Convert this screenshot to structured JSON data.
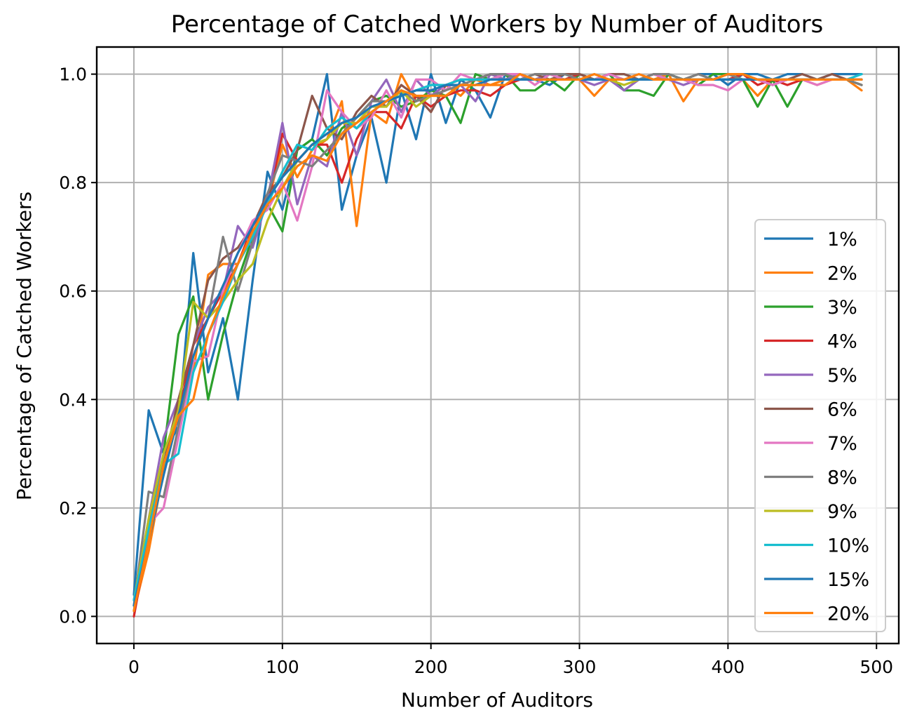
{
  "chart_data": {
    "type": "line",
    "title": "Percentage of Catched Workers by Number of Auditors",
    "xlabel": "Number of Auditors",
    "ylabel": "Percentage of Catched Workers",
    "xlim": [
      -25,
      515
    ],
    "ylim": [
      -0.05,
      1.05
    ],
    "xticks": [
      0,
      100,
      200,
      300,
      400,
      500
    ],
    "yticks": [
      0.0,
      0.2,
      0.4,
      0.6,
      0.8,
      1.0
    ],
    "xtick_labels": [
      "0",
      "100",
      "200",
      "300",
      "400",
      "500"
    ],
    "ytick_labels": [
      "0.0",
      "0.2",
      "0.4",
      "0.6",
      "0.8",
      "1.0"
    ],
    "grid": true,
    "legend_position": "center-right",
    "x": [
      0,
      10,
      20,
      30,
      40,
      50,
      60,
      70,
      80,
      90,
      100,
      110,
      120,
      130,
      140,
      150,
      160,
      170,
      180,
      190,
      200,
      210,
      220,
      230,
      240,
      250,
      260,
      270,
      280,
      290,
      300,
      310,
      320,
      330,
      340,
      350,
      360,
      370,
      380,
      390,
      400,
      410,
      420,
      430,
      440,
      450,
      460,
      470,
      480,
      490
    ],
    "series": [
      {
        "name": "1%",
        "color": "#1f77b4",
        "values": [
          0.04,
          0.38,
          0.3,
          0.35,
          0.67,
          0.45,
          0.55,
          0.4,
          0.62,
          0.82,
          0.75,
          0.86,
          0.88,
          1.0,
          0.75,
          0.85,
          0.92,
          0.8,
          0.97,
          0.88,
          1.0,
          0.91,
          0.99,
          0.97,
          0.92,
          1.0,
          1.0,
          0.99,
          0.98,
          1.0,
          1.0,
          0.99,
          1.0,
          1.0,
          0.99,
          1.0,
          1.0,
          0.99,
          1.0,
          1.0,
          0.98,
          1.0,
          1.0,
          0.99,
          1.0,
          1.0,
          0.99,
          1.0,
          1.0,
          1.0
        ]
      },
      {
        "name": "2%",
        "color": "#ff7f0e",
        "values": [
          0.01,
          0.12,
          0.27,
          0.39,
          0.45,
          0.63,
          0.65,
          0.65,
          0.7,
          0.76,
          0.87,
          0.81,
          0.86,
          0.88,
          0.95,
          0.72,
          0.93,
          0.91,
          1.0,
          0.95,
          0.96,
          0.98,
          0.96,
          0.99,
          0.98,
          0.99,
          1.0,
          0.99,
          1.0,
          0.99,
          0.99,
          0.96,
          0.99,
          0.99,
          0.99,
          0.99,
          1.0,
          0.95,
          0.99,
          0.99,
          0.99,
          0.99,
          0.96,
          0.99,
          0.99,
          0.99,
          0.98,
          0.99,
          0.99,
          0.97
        ]
      },
      {
        "name": "3%",
        "color": "#2ca02c",
        "values": [
          0.02,
          0.16,
          0.3,
          0.52,
          0.59,
          0.4,
          0.52,
          0.62,
          0.7,
          0.76,
          0.71,
          0.86,
          0.88,
          0.85,
          0.9,
          0.92,
          0.95,
          0.96,
          0.94,
          0.95,
          0.97,
          0.96,
          0.91,
          1.0,
          0.99,
          1.0,
          0.97,
          0.97,
          0.99,
          0.97,
          1.0,
          0.99,
          1.0,
          0.97,
          0.97,
          0.96,
          1.0,
          0.99,
          0.98,
          1.0,
          1.0,
          0.99,
          0.94,
          0.99,
          0.94,
          0.99,
          0.99,
          0.99,
          0.99,
          0.98
        ]
      },
      {
        "name": "4%",
        "color": "#d62728",
        "values": [
          0.0,
          0.15,
          0.28,
          0.37,
          0.5,
          0.55,
          0.6,
          0.65,
          0.72,
          0.76,
          0.89,
          0.84,
          0.87,
          0.87,
          0.8,
          0.88,
          0.93,
          0.93,
          0.9,
          0.96,
          0.94,
          0.96,
          0.97,
          0.97,
          0.96,
          0.98,
          0.99,
          0.99,
          0.99,
          0.99,
          1.0,
          0.99,
          0.99,
          0.99,
          0.99,
          1.0,
          0.99,
          0.99,
          0.99,
          0.99,
          0.99,
          1.0,
          0.98,
          0.99,
          0.98,
          0.99,
          0.99,
          0.99,
          0.99,
          0.99
        ]
      },
      {
        "name": "5%",
        "color": "#9467bd",
        "values": [
          0.03,
          0.18,
          0.33,
          0.4,
          0.5,
          0.57,
          0.6,
          0.72,
          0.68,
          0.77,
          0.91,
          0.76,
          0.85,
          0.83,
          0.93,
          0.85,
          0.95,
          0.99,
          0.93,
          0.99,
          0.96,
          0.98,
          0.98,
          0.95,
          1.0,
          0.99,
          1.0,
          0.99,
          1.0,
          0.99,
          0.99,
          0.98,
          0.99,
          0.97,
          0.99,
          0.99,
          0.99,
          0.98,
          0.99,
          0.99,
          0.99,
          0.99,
          0.99,
          0.98,
          0.99,
          0.99,
          0.99,
          0.99,
          0.99,
          0.99
        ]
      },
      {
        "name": "6%",
        "color": "#8c564b",
        "values": [
          0.01,
          0.17,
          0.28,
          0.4,
          0.5,
          0.62,
          0.66,
          0.68,
          0.72,
          0.78,
          0.81,
          0.86,
          0.96,
          0.9,
          0.88,
          0.93,
          0.96,
          0.94,
          0.98,
          0.96,
          0.93,
          0.98,
          0.99,
          0.99,
          1.0,
          1.0,
          0.99,
          1.0,
          0.99,
          1.0,
          1.0,
          0.99,
          1.0,
          1.0,
          0.99,
          1.0,
          0.99,
          0.99,
          1.0,
          0.99,
          1.0,
          1.0,
          0.99,
          0.98,
          0.99,
          1.0,
          0.99,
          1.0,
          0.99,
          0.98
        ]
      },
      {
        "name": "7%",
        "color": "#e377c2",
        "values": [
          0.02,
          0.17,
          0.2,
          0.33,
          0.47,
          0.48,
          0.6,
          0.67,
          0.73,
          0.75,
          0.8,
          0.73,
          0.83,
          0.97,
          0.93,
          0.9,
          0.92,
          0.97,
          0.92,
          0.99,
          0.99,
          0.97,
          1.0,
          0.99,
          0.99,
          1.0,
          1.0,
          0.98,
          1.0,
          0.99,
          0.99,
          0.99,
          1.0,
          0.99,
          0.99,
          1.0,
          0.99,
          0.99,
          0.98,
          0.98,
          0.97,
          0.99,
          0.99,
          0.98,
          0.99,
          0.99,
          0.98,
          0.99,
          0.99,
          0.99
        ]
      },
      {
        "name": "8%",
        "color": "#7f7f7f",
        "values": [
          0.02,
          0.23,
          0.22,
          0.35,
          0.48,
          0.55,
          0.7,
          0.6,
          0.69,
          0.78,
          0.85,
          0.84,
          0.83,
          0.86,
          0.89,
          0.92,
          0.95,
          0.95,
          0.97,
          0.95,
          0.96,
          0.97,
          0.98,
          0.99,
          1.0,
          1.0,
          0.99,
          1.0,
          1.0,
          1.0,
          0.99,
          1.0,
          0.99,
          0.99,
          0.99,
          1.0,
          1.0,
          0.99,
          1.0,
          0.99,
          1.0,
          0.99,
          0.99,
          0.99,
          0.99,
          0.99,
          0.99,
          0.99,
          0.99,
          0.98
        ]
      },
      {
        "name": "9%",
        "color": "#bcbd22",
        "values": [
          0.03,
          0.18,
          0.3,
          0.38,
          0.58,
          0.55,
          0.58,
          0.62,
          0.65,
          0.73,
          0.79,
          0.84,
          0.87,
          0.88,
          0.91,
          0.91,
          0.94,
          0.94,
          0.97,
          0.94,
          0.96,
          0.96,
          0.98,
          0.98,
          0.99,
          0.99,
          0.99,
          0.99,
          0.99,
          0.99,
          0.99,
          0.99,
          0.99,
          0.98,
          0.99,
          0.99,
          0.99,
          0.99,
          0.99,
          0.99,
          0.99,
          0.99,
          0.99,
          0.99,
          0.99,
          0.99,
          0.99,
          0.99,
          0.99,
          0.99
        ]
      },
      {
        "name": "10%",
        "color": "#17becf",
        "values": [
          0.03,
          0.16,
          0.28,
          0.3,
          0.45,
          0.52,
          0.58,
          0.65,
          0.7,
          0.76,
          0.82,
          0.87,
          0.86,
          0.9,
          0.92,
          0.9,
          0.93,
          0.95,
          0.96,
          0.97,
          0.98,
          0.98,
          0.99,
          0.99,
          0.99,
          0.99,
          0.99,
          0.99,
          0.99,
          0.99,
          0.99,
          0.99,
          0.99,
          0.99,
          0.99,
          0.99,
          0.99,
          0.99,
          0.99,
          0.99,
          0.99,
          0.99,
          0.99,
          0.99,
          0.99,
          0.99,
          0.99,
          0.99,
          0.99,
          1.0
        ]
      },
      {
        "name": "15%",
        "color": "#1f77b4",
        "values": [
          0.02,
          0.14,
          0.26,
          0.37,
          0.48,
          0.55,
          0.61,
          0.67,
          0.72,
          0.77,
          0.81,
          0.84,
          0.87,
          0.89,
          0.91,
          0.92,
          0.94,
          0.95,
          0.96,
          0.97,
          0.97,
          0.98,
          0.98,
          0.98,
          0.99,
          0.99,
          0.99,
          0.99,
          0.99,
          0.99,
          0.99,
          0.99,
          0.99,
          0.99,
          0.99,
          0.99,
          0.99,
          0.99,
          0.99,
          0.99,
          0.99,
          0.99,
          0.99,
          0.99,
          0.99,
          0.99,
          0.99,
          0.99,
          0.99,
          0.99
        ]
      },
      {
        "name": "20%",
        "color": "#ff7f0e",
        "values": [
          0.01,
          0.14,
          0.28,
          0.37,
          0.4,
          0.52,
          0.59,
          0.65,
          0.71,
          0.76,
          0.79,
          0.83,
          0.85,
          0.84,
          0.89,
          0.91,
          0.93,
          0.95,
          0.97,
          0.96,
          0.96,
          0.96,
          0.98,
          0.98,
          0.98,
          0.98,
          1.0,
          0.99,
          0.99,
          0.99,
          0.99,
          1.0,
          0.99,
          0.99,
          1.0,
          0.99,
          0.99,
          0.99,
          0.99,
          0.99,
          1.0,
          1.0,
          0.99,
          0.99,
          0.99,
          0.99,
          0.99,
          0.99,
          0.99,
          0.99
        ]
      }
    ]
  }
}
